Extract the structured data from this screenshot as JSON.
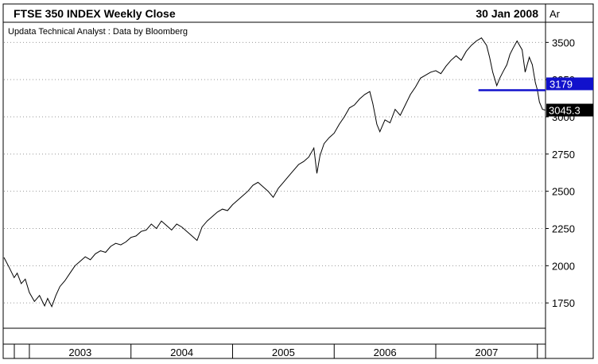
{
  "header": {
    "title": "FTSE 350 INDEX Weekly Close",
    "date": "30 Jan 2008",
    "corner_label": "Ar",
    "subtitle": "Updata Technical Analyst : Data by Bloomberg"
  },
  "chart_data": {
    "type": "line",
    "title": "FTSE 350 INDEX Weekly Close",
    "xlabel": "",
    "ylabel": "",
    "x_range": [
      2002.75,
      2008.08
    ],
    "ylim": [
      1580,
      3630
    ],
    "y_ticks": [
      1750,
      2000,
      2250,
      2500,
      2750,
      3000,
      3250,
      3500
    ],
    "y_tick_labels": [
      "1750",
      "2000",
      "2250",
      "2500",
      "2750",
      "3000",
      "3250",
      "3500"
    ],
    "grid": true,
    "x_periods": [
      {
        "label": "2003",
        "start": 2003.0,
        "end": 2004.0
      },
      {
        "label": "2004",
        "start": 2004.0,
        "end": 2005.0
      },
      {
        "label": "2005",
        "start": 2005.0,
        "end": 2006.0
      },
      {
        "label": "2006",
        "start": 2006.0,
        "end": 2007.0
      },
      {
        "label": "2007",
        "start": 2007.0,
        "end": 2008.0
      }
    ],
    "series": [
      {
        "color": "#000000",
        "points": [
          [
            2002.75,
            2055
          ],
          [
            2002.8,
            1990
          ],
          [
            2002.85,
            1920
          ],
          [
            2002.88,
            1950
          ],
          [
            2002.92,
            1880
          ],
          [
            2002.96,
            1910
          ],
          [
            2003.0,
            1820
          ],
          [
            2003.05,
            1760
          ],
          [
            2003.1,
            1800
          ],
          [
            2003.15,
            1730
          ],
          [
            2003.18,
            1780
          ],
          [
            2003.22,
            1725
          ],
          [
            2003.26,
            1800
          ],
          [
            2003.3,
            1860
          ],
          [
            2003.35,
            1900
          ],
          [
            2003.4,
            1950
          ],
          [
            2003.45,
            2000
          ],
          [
            2003.5,
            2030
          ],
          [
            2003.55,
            2060
          ],
          [
            2003.6,
            2040
          ],
          [
            2003.65,
            2080
          ],
          [
            2003.7,
            2100
          ],
          [
            2003.75,
            2090
          ],
          [
            2003.8,
            2130
          ],
          [
            2003.85,
            2150
          ],
          [
            2003.9,
            2140
          ],
          [
            2003.95,
            2160
          ],
          [
            2004.0,
            2190
          ],
          [
            2004.05,
            2200
          ],
          [
            2004.1,
            2230
          ],
          [
            2004.15,
            2240
          ],
          [
            2004.2,
            2280
          ],
          [
            2004.25,
            2250
          ],
          [
            2004.3,
            2300
          ],
          [
            2004.35,
            2270
          ],
          [
            2004.4,
            2240
          ],
          [
            2004.45,
            2280
          ],
          [
            2004.5,
            2260
          ],
          [
            2004.55,
            2230
          ],
          [
            2004.6,
            2200
          ],
          [
            2004.65,
            2170
          ],
          [
            2004.7,
            2260
          ],
          [
            2004.75,
            2300
          ],
          [
            2004.8,
            2330
          ],
          [
            2004.85,
            2360
          ],
          [
            2004.9,
            2380
          ],
          [
            2004.95,
            2370
          ],
          [
            2005.0,
            2410
          ],
          [
            2005.05,
            2440
          ],
          [
            2005.1,
            2470
          ],
          [
            2005.15,
            2500
          ],
          [
            2005.2,
            2540
          ],
          [
            2005.25,
            2560
          ],
          [
            2005.3,
            2530
          ],
          [
            2005.35,
            2500
          ],
          [
            2005.4,
            2460
          ],
          [
            2005.45,
            2520
          ],
          [
            2005.5,
            2560
          ],
          [
            2005.55,
            2600
          ],
          [
            2005.6,
            2640
          ],
          [
            2005.65,
            2680
          ],
          [
            2005.7,
            2700
          ],
          [
            2005.75,
            2730
          ],
          [
            2005.8,
            2790
          ],
          [
            2005.83,
            2620
          ],
          [
            2005.86,
            2740
          ],
          [
            2005.9,
            2820
          ],
          [
            2005.95,
            2860
          ],
          [
            2006.0,
            2890
          ],
          [
            2006.05,
            2950
          ],
          [
            2006.1,
            3000
          ],
          [
            2006.15,
            3060
          ],
          [
            2006.2,
            3080
          ],
          [
            2006.25,
            3120
          ],
          [
            2006.3,
            3150
          ],
          [
            2006.35,
            3170
          ],
          [
            2006.38,
            3090
          ],
          [
            2006.42,
            2950
          ],
          [
            2006.45,
            2900
          ],
          [
            2006.5,
            2980
          ],
          [
            2006.55,
            2960
          ],
          [
            2006.6,
            3050
          ],
          [
            2006.65,
            3010
          ],
          [
            2006.7,
            3080
          ],
          [
            2006.75,
            3150
          ],
          [
            2006.8,
            3200
          ],
          [
            2006.85,
            3260
          ],
          [
            2006.9,
            3280
          ],
          [
            2006.95,
            3300
          ],
          [
            2007.0,
            3310
          ],
          [
            2007.05,
            3290
          ],
          [
            2007.1,
            3340
          ],
          [
            2007.15,
            3380
          ],
          [
            2007.2,
            3410
          ],
          [
            2007.25,
            3380
          ],
          [
            2007.3,
            3440
          ],
          [
            2007.35,
            3480
          ],
          [
            2007.4,
            3510
          ],
          [
            2007.45,
            3530
          ],
          [
            2007.5,
            3480
          ],
          [
            2007.53,
            3400
          ],
          [
            2007.56,
            3300
          ],
          [
            2007.6,
            3210
          ],
          [
            2007.63,
            3260
          ],
          [
            2007.66,
            3300
          ],
          [
            2007.7,
            3350
          ],
          [
            2007.73,
            3420
          ],
          [
            2007.76,
            3460
          ],
          [
            2007.8,
            3510
          ],
          [
            2007.85,
            3450
          ],
          [
            2007.88,
            3300
          ],
          [
            2007.92,
            3400
          ],
          [
            2007.95,
            3350
          ],
          [
            2007.98,
            3230
          ],
          [
            2008.0,
            3180
          ],
          [
            2008.02,
            3100
          ],
          [
            2008.05,
            3050
          ],
          [
            2008.08,
            3045
          ]
        ]
      }
    ],
    "reference_line": {
      "label": "3179",
      "value": 3179,
      "start": 2007.42,
      "end": 2008.08,
      "color": "#1111cc"
    },
    "last_value_label": {
      "label": "3045.3",
      "value": 3045.3
    }
  }
}
